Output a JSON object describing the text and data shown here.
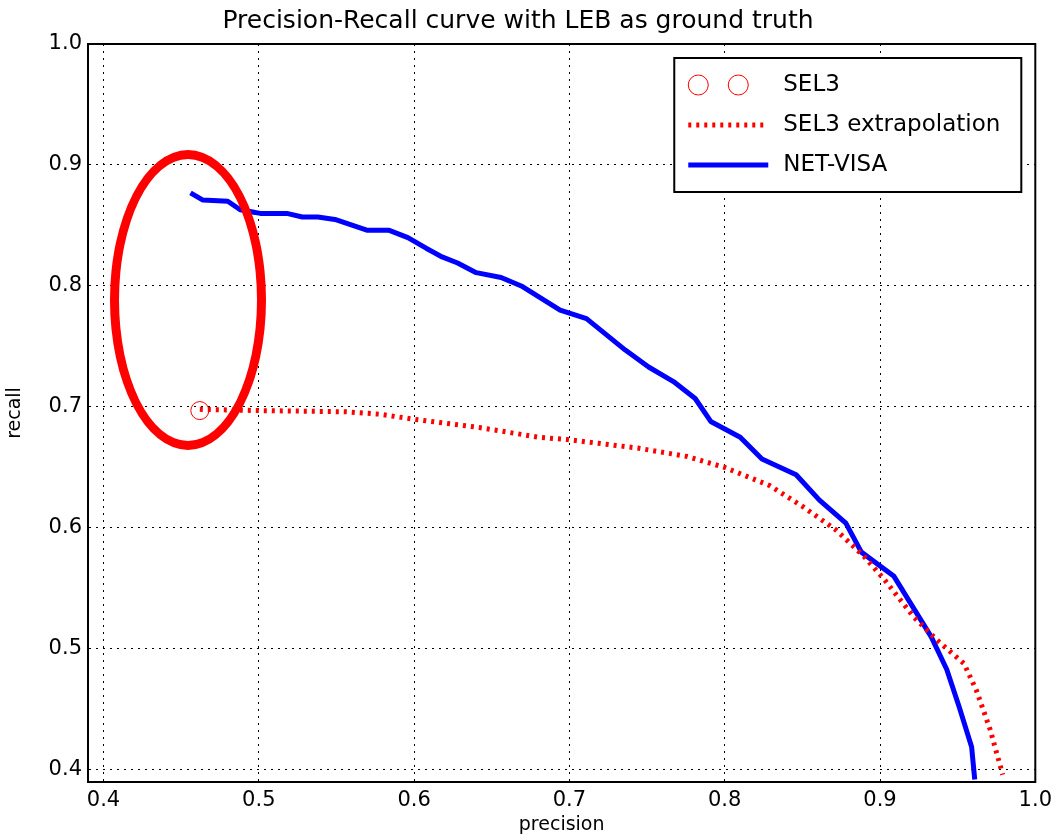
{
  "chart_data": {
    "type": "line",
    "title": "Precision-Recall curve with LEB as ground truth",
    "xlabel": "precision",
    "ylabel": "recall",
    "xlim": [
      0.39,
      1.0
    ],
    "xticks": [
      0.4,
      0.5,
      0.6,
      0.7,
      0.8,
      0.9,
      {
        "value": 1,
        "label": "1.0"
      }
    ],
    "ylim": [
      0.39,
      1.0
    ],
    "yticks": [
      0.4,
      0.5,
      0.6,
      0.7,
      0.8,
      0.9,
      {
        "value": 1,
        "label": "1.0"
      }
    ],
    "grid": true,
    "legend": "top right",
    "series": [
      {
        "name": "SEL3",
        "type": "scatter",
        "marker": "circle",
        "color": "#ff0000",
        "x": [
          0.462
        ],
        "values": [
          0.697
        ]
      },
      {
        "name": "SEL3 extrapolation",
        "type": "line",
        "line_style": "dotted",
        "color": "#ff0000",
        "x": [
          0.462,
          0.501,
          0.556,
          0.578,
          0.599,
          0.642,
          0.68,
          0.699,
          0.744,
          0.776,
          0.8,
          0.829,
          0.851,
          0.872,
          0.89,
          0.903,
          0.922,
          0.937,
          0.954,
          0.962,
          0.971,
          0.979
        ],
        "values": [
          0.698,
          0.697,
          0.696,
          0.694,
          0.69,
          0.683,
          0.675,
          0.673,
          0.666,
          0.659,
          0.65,
          0.635,
          0.617,
          0.598,
          0.576,
          0.557,
          0.526,
          0.507,
          0.488,
          0.466,
          0.433,
          0.396
        ]
      },
      {
        "name": "NET-VISA",
        "type": "line",
        "line_style": "solid",
        "color": "#0000ff",
        "x": [
          0.456,
          0.464,
          0.48,
          0.488,
          0.501,
          0.518,
          0.528,
          0.538,
          0.549,
          0.57,
          0.584,
          0.596,
          0.608,
          0.618,
          0.628,
          0.64,
          0.656,
          0.669,
          0.694,
          0.711,
          0.736,
          0.751,
          0.767,
          0.781,
          0.791,
          0.81,
          0.824,
          0.846,
          0.861,
          0.878,
          0.888,
          0.909,
          0.933,
          0.943,
          0.951,
          0.959,
          0.961
        ],
        "values": [
          0.877,
          0.871,
          0.87,
          0.863,
          0.86,
          0.86,
          0.857,
          0.857,
          0.855,
          0.846,
          0.846,
          0.84,
          0.831,
          0.824,
          0.819,
          0.811,
          0.807,
          0.8,
          0.78,
          0.773,
          0.747,
          0.733,
          0.721,
          0.707,
          0.688,
          0.675,
          0.657,
          0.644,
          0.623,
          0.604,
          0.58,
          0.56,
          0.51,
          0.483,
          0.452,
          0.419,
          0.392
        ]
      }
    ]
  }
}
